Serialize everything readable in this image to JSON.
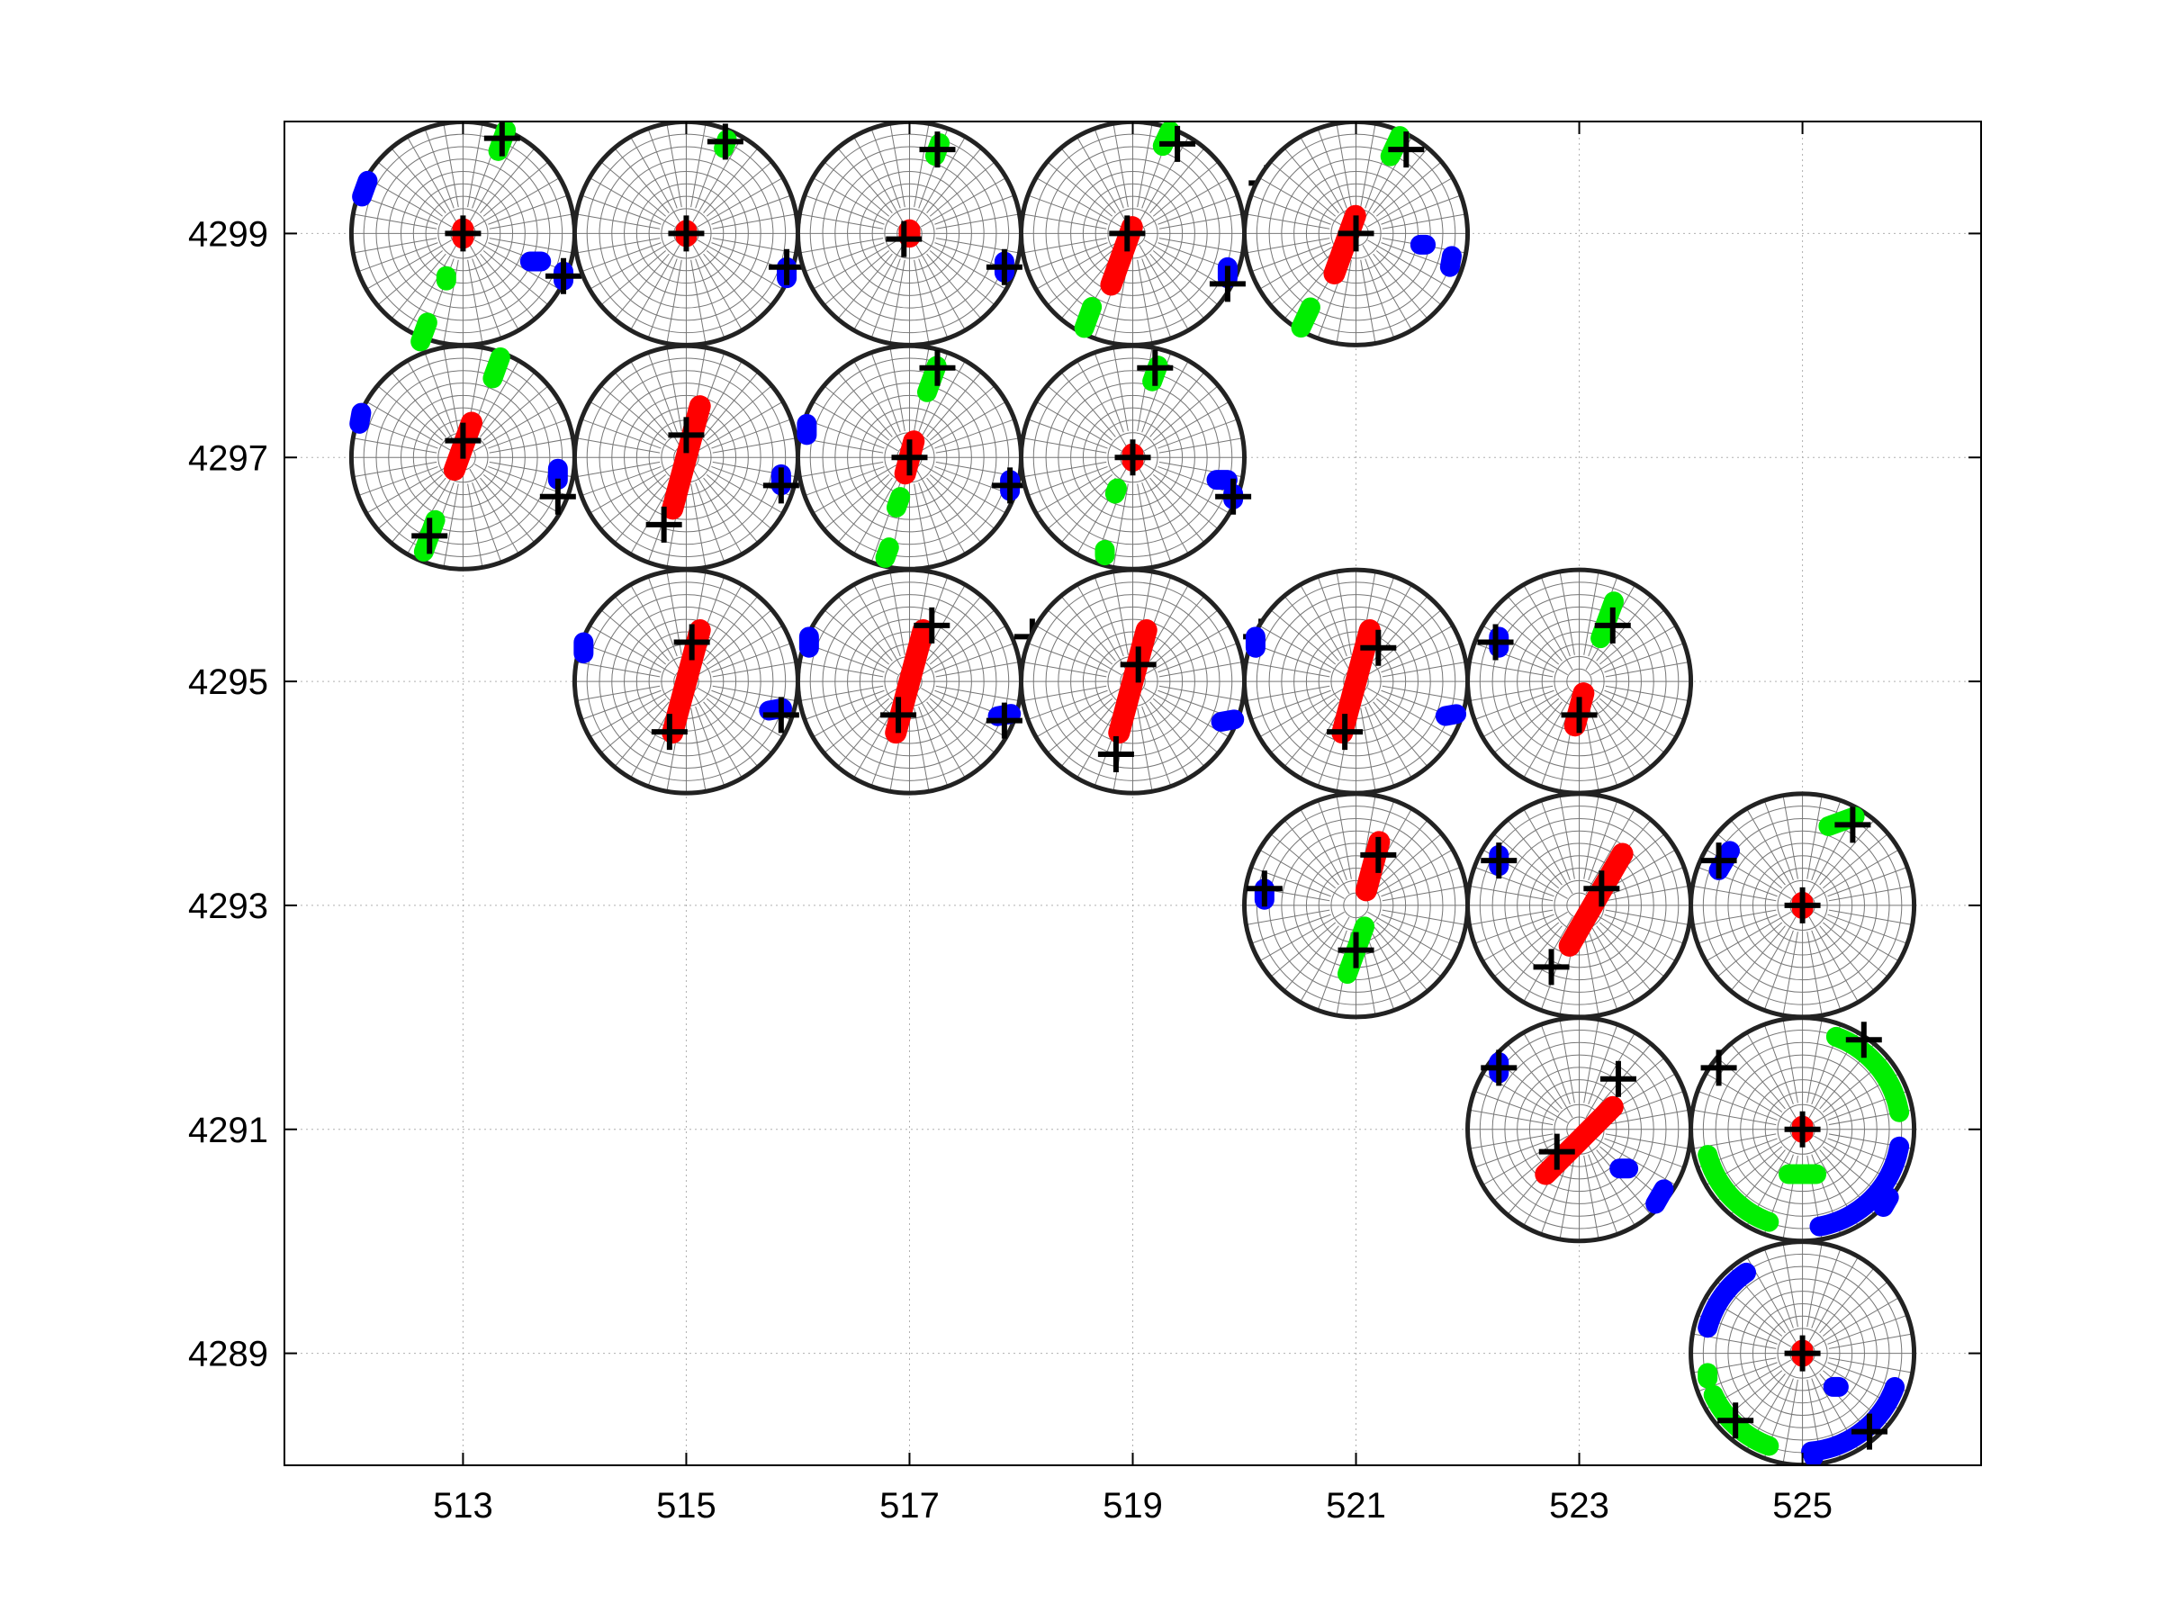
{
  "chart_data": {
    "type": "scatter",
    "title": "",
    "xlabel": "",
    "ylabel": "",
    "xlim": [
      511.4,
      526.6
    ],
    "ylim": [
      4288.0,
      4300.0
    ],
    "x_ticks": [
      "513",
      "515",
      "517",
      "519",
      "521",
      "523",
      "525"
    ],
    "y_ticks": [
      "4299",
      "4297",
      "4295",
      "4293",
      "4291",
      "4289"
    ],
    "grid": true,
    "glyph_radius": 1.0,
    "colors": {
      "red": "#ff0000",
      "green": "#00ee00",
      "blue": "#0000ff",
      "cross": "#000000",
      "net": "#777777",
      "circle": "#222222"
    },
    "series_note": "three point families per stereonet (red, green, blue) plus black cross markers",
    "stations": [
      {
        "x": 513,
        "y": 4299,
        "red": {
          "center": [
            0,
            0
          ],
          "az": 0,
          "len": 0.08
        },
        "green": [
          {
            "at": [
              0.35,
              0.83
            ],
            "az": 20,
            "len": 0.2
          },
          {
            "at": [
              -0.35,
              -0.88
            ],
            "az": 20,
            "len": 0.18
          },
          {
            "at": [
              -0.15,
              -0.4
            ],
            "az": 0,
            "len": 0.04
          }
        ],
        "blue": [
          {
            "at": [
              -0.88,
              0.4
            ],
            "az": 20,
            "len": 0.15
          },
          {
            "at": [
              0.65,
              -0.25
            ],
            "az": 90,
            "len": 0.1
          },
          {
            "at": [
              0.9,
              -0.38
            ],
            "az": 0,
            "len": 0.08
          }
        ],
        "crosses": [
          [
            0,
            0
          ],
          [
            0.35,
            0.85
          ],
          [
            0.9,
            -0.38
          ]
        ]
      },
      {
        "x": 515,
        "y": 4299,
        "red": {
          "center": [
            0,
            0
          ],
          "az": 0,
          "len": 0.05
        },
        "green": [
          {
            "at": [
              0.35,
              0.8
            ],
            "az": 20,
            "len": 0.08
          }
        ],
        "blue": [
          {
            "at": [
              0.9,
              -0.35
            ],
            "az": 0,
            "len": 0.1
          }
        ],
        "crosses": [
          [
            0,
            0
          ],
          [
            0.35,
            0.82
          ],
          [
            0.9,
            -0.3
          ]
        ]
      },
      {
        "x": 517,
        "y": 4299,
        "red": {
          "center": [
            0,
            0
          ],
          "az": 0,
          "len": 0.06
        },
        "green": [
          {
            "at": [
              0.25,
              0.75
            ],
            "az": 20,
            "len": 0.12
          }
        ],
        "blue": [
          {
            "at": [
              0.85,
              -0.3
            ],
            "az": 0,
            "len": 0.1
          }
        ],
        "crosses": [
          [
            -0.05,
            -0.05
          ],
          [
            0.25,
            0.75
          ],
          [
            0.85,
            -0.3
          ]
        ]
      },
      {
        "x": 519,
        "y": 4299,
        "red": {
          "center": [
            -0.1,
            -0.2
          ],
          "az": 20,
          "len": 0.55
        },
        "green": [
          {
            "at": [
              0.3,
              0.85
            ],
            "az": 25,
            "len": 0.15
          },
          {
            "at": [
              -0.4,
              -0.75
            ],
            "az": 20,
            "len": 0.2
          }
        ],
        "blue": [
          {
            "at": [
              0.85,
              -0.35
            ],
            "az": 0,
            "len": 0.1
          }
        ],
        "crosses": [
          [
            -0.05,
            0
          ],
          [
            0.4,
            0.8
          ],
          [
            0.85,
            -0.45
          ],
          [
            1.2,
            0.45
          ]
        ]
      },
      {
        "x": 521,
        "y": 4299,
        "red": {
          "center": [
            -0.1,
            -0.1
          ],
          "az": 20,
          "len": 0.55
        },
        "green": [
          {
            "at": [
              0.35,
              0.78
            ],
            "az": 25,
            "len": 0.2
          },
          {
            "at": [
              -0.45,
              -0.75
            ],
            "az": 25,
            "len": 0.2
          }
        ],
        "blue": [
          {
            "at": [
              0.85,
              -0.25
            ],
            "az": 10,
            "len": 0.1
          },
          {
            "at": [
              0.6,
              -0.1
            ],
            "az": 90,
            "len": 0.05
          }
        ],
        "crosses": [
          [
            0,
            0
          ],
          [
            0.45,
            0.75
          ]
        ]
      },
      {
        "x": 513,
        "y": 4297,
        "red": {
          "center": [
            0,
            0.1
          ],
          "az": 20,
          "len": 0.45
        },
        "green": [
          {
            "at": [
              0.3,
              0.8
            ],
            "az": 20,
            "len": 0.2
          },
          {
            "at": [
              -0.3,
              -0.7
            ],
            "az": 20,
            "len": 0.3
          }
        ],
        "blue": [
          {
            "at": [
              -0.92,
              0.35
            ],
            "az": 10,
            "len": 0.1
          },
          {
            "at": [
              0.85,
              -0.15
            ],
            "az": 0,
            "len": 0.1
          }
        ],
        "crosses": [
          [
            0,
            0.15
          ],
          [
            -0.3,
            -0.7
          ],
          [
            0.85,
            -0.35
          ]
        ]
      },
      {
        "x": 515,
        "y": 4297,
        "red": {
          "center": [
            0,
            0
          ],
          "az": 15,
          "len": 0.95
        },
        "green": [],
        "blue": [
          {
            "at": [
              0.85,
              -0.2
            ],
            "az": 0,
            "len": 0.1
          }
        ],
        "crosses": [
          [
            0,
            0.2
          ],
          [
            -0.2,
            -0.6
          ],
          [
            0.85,
            -0.25
          ]
        ]
      },
      {
        "x": 517,
        "y": 4297,
        "red": {
          "center": [
            0,
            0
          ],
          "az": 15,
          "len": 0.3
        },
        "green": [
          {
            "at": [
              0.2,
              0.7
            ],
            "az": 20,
            "len": 0.25
          },
          {
            "at": [
              -0.2,
              -0.85
            ],
            "az": 20,
            "len": 0.1
          },
          {
            "at": [
              -0.1,
              -0.4
            ],
            "az": 20,
            "len": 0.1
          }
        ],
        "blue": [
          {
            "at": [
              -0.92,
              0.25
            ],
            "az": 0,
            "len": 0.1
          },
          {
            "at": [
              0.9,
              -0.25
            ],
            "az": 0,
            "len": 0.1
          }
        ],
        "crosses": [
          [
            0,
            0
          ],
          [
            0.25,
            0.8
          ],
          [
            0.9,
            -0.25
          ]
        ]
      },
      {
        "x": 519,
        "y": 4297,
        "red": {
          "center": [
            0,
            0
          ],
          "az": 0,
          "len": 0.06
        },
        "green": [
          {
            "at": [
              0.2,
              0.75
            ],
            "az": 20,
            "len": 0.15
          },
          {
            "at": [
              -0.15,
              -0.3
            ],
            "az": 20,
            "len": 0.05
          },
          {
            "at": [
              -0.25,
              -0.85
            ],
            "az": 0,
            "len": 0.05
          }
        ],
        "blue": [
          {
            "at": [
              0.8,
              -0.2
            ],
            "az": 90,
            "len": 0.1
          },
          {
            "at": [
              0.9,
              -0.35
            ],
            "az": 0,
            "len": 0.05
          }
        ],
        "crosses": [
          [
            0,
            0
          ],
          [
            0.2,
            0.8
          ],
          [
            0.9,
            -0.35
          ]
        ]
      },
      {
        "x": 515,
        "y": 4295,
        "red": {
          "center": [
            0,
            0
          ],
          "az": 15,
          "len": 0.95
        },
        "green": [],
        "blue": [
          {
            "at": [
              -0.92,
              0.3
            ],
            "az": 0,
            "len": 0.1
          },
          {
            "at": [
              0.8,
              -0.25
            ],
            "az": 80,
            "len": 0.12
          }
        ],
        "crosses": [
          [
            0.05,
            0.35
          ],
          [
            -0.15,
            -0.45
          ],
          [
            0.85,
            -0.3
          ]
        ]
      },
      {
        "x": 517,
        "y": 4295,
        "red": {
          "center": [
            0,
            0
          ],
          "az": 15,
          "len": 0.95
        },
        "green": [],
        "blue": [
          {
            "at": [
              -0.9,
              0.35
            ],
            "az": 0,
            "len": 0.1
          },
          {
            "at": [
              0.85,
              -0.3
            ],
            "az": 80,
            "len": 0.12
          }
        ],
        "crosses": [
          [
            0.2,
            0.5
          ],
          [
            -0.1,
            -0.3
          ],
          [
            0.85,
            -0.35
          ],
          [
            1.1,
            0.4
          ]
        ]
      },
      {
        "x": 519,
        "y": 4295,
        "red": {
          "center": [
            0,
            0
          ],
          "az": 15,
          "len": 0.95
        },
        "green": [],
        "blue": [
          {
            "at": [
              0.85,
              -0.35
            ],
            "az": 80,
            "len": 0.12
          }
        ],
        "crosses": [
          [
            0.05,
            0.15
          ],
          [
            -0.15,
            -0.65
          ],
          [
            1.15,
            0.4
          ]
        ]
      },
      {
        "x": 521,
        "y": 4295,
        "red": {
          "center": [
            0,
            0
          ],
          "az": 15,
          "len": 0.95
        },
        "green": [],
        "blue": [
          {
            "at": [
              -0.9,
              0.35
            ],
            "az": 0,
            "len": 0.1
          },
          {
            "at": [
              0.85,
              -0.3
            ],
            "az": 80,
            "len": 0.1
          }
        ],
        "crosses": [
          [
            0.2,
            0.3
          ],
          [
            -0.1,
            -0.45
          ]
        ]
      },
      {
        "x": 523,
        "y": 4295,
        "red": {
          "center": [
            0,
            -0.25
          ],
          "az": 15,
          "len": 0.3
        },
        "green": [
          {
            "at": [
              0.25,
              0.55
            ],
            "az": 20,
            "len": 0.35
          }
        ],
        "blue": [
          {
            "at": [
              -0.72,
              0.35
            ],
            "az": 0,
            "len": 0.1
          }
        ],
        "crosses": [
          [
            0,
            -0.3
          ],
          [
            0.3,
            0.5
          ],
          [
            -0.75,
            0.35
          ]
        ]
      },
      {
        "x": 521,
        "y": 4293,
        "red": {
          "center": [
            0.15,
            0.35
          ],
          "az": 15,
          "len": 0.45
        },
        "green": [
          {
            "at": [
              0,
              -0.4
            ],
            "az": 20,
            "len": 0.45
          }
        ],
        "blue": [
          {
            "at": [
              -0.82,
              0.1
            ],
            "az": 0,
            "len": 0.1
          }
        ],
        "crosses": [
          [
            0.2,
            0.45
          ],
          [
            0,
            -0.4
          ],
          [
            -0.82,
            0.15
          ]
        ]
      },
      {
        "x": 523,
        "y": 4293,
        "red": {
          "center": [
            0.15,
            0.05
          ],
          "az": 30,
          "len": 0.95
        },
        "green": [],
        "blue": [
          {
            "at": [
              -0.72,
              0.4
            ],
            "az": 0,
            "len": 0.1
          }
        ],
        "crosses": [
          [
            0.2,
            0.15
          ],
          [
            -0.25,
            -0.55
          ],
          [
            -0.72,
            0.4
          ]
        ]
      },
      {
        "x": 525,
        "y": 4293,
        "red": {
          "center": [
            0,
            0
          ],
          "az": 0,
          "len": 0.05
        },
        "green": [
          {
            "at": [
              0.35,
              0.75
            ],
            "az": 70,
            "len": 0.25
          }
        ],
        "blue": [
          {
            "at": [
              -0.7,
              0.4
            ],
            "az": 30,
            "len": 0.2
          }
        ],
        "crosses": [
          [
            0,
            0
          ],
          [
            0.45,
            0.72
          ],
          [
            -0.75,
            0.4
          ]
        ]
      },
      {
        "x": 523,
        "y": 4291,
        "red": {
          "center": [
            0,
            -0.1
          ],
          "az": 45,
          "len": 0.85
        },
        "green": [],
        "blue": [
          {
            "at": [
              -0.72,
              0.55
            ],
            "az": 0,
            "len": 0.1
          },
          {
            "at": [
              0.4,
              -0.35
            ],
            "az": 90,
            "len": 0.08
          },
          {
            "at": [
              0.72,
              -0.6
            ],
            "az": 30,
            "len": 0.15
          }
        ],
        "crosses": [
          [
            0.35,
            0.45
          ],
          [
            -0.2,
            -0.2
          ],
          [
            -0.72,
            0.55
          ]
        ]
      },
      {
        "x": 525,
        "y": 4291,
        "red": {
          "center": [
            0,
            0
          ],
          "az": 0,
          "len": 0.05
        },
        "green": [
          {
            "at": [
              0,
              -0.4
            ],
            "az": 90,
            "len": 0.25
          }
        ],
        "green_arcs": [
          {
            "from": 20,
            "to": 80
          },
          {
            "from": 200,
            "to": 255
          }
        ],
        "blue_arcs": [
          {
            "from": 100,
            "to": 170
          }
        ],
        "blue": [
          {
            "at": [
              0.75,
              -0.65
            ],
            "az": 30,
            "len": 0.1
          }
        ],
        "crosses": [
          [
            0,
            0
          ],
          [
            0.55,
            0.8
          ],
          [
            -0.75,
            0.55
          ]
        ]
      },
      {
        "x": 525,
        "y": 4289,
        "red": {
          "center": [
            0,
            0
          ],
          "az": 0,
          "len": 0.05
        },
        "green_arcs": [
          {
            "from": 200,
            "to": 245
          }
        ],
        "blue_arcs": [
          {
            "from": 110,
            "to": 175
          },
          {
            "from": 285,
            "to": 325
          }
        ],
        "green": [
          {
            "at": [
              -0.85,
              -0.2
            ],
            "az": 0,
            "len": 0.05
          }
        ],
        "blue": [
          {
            "at": [
              0.3,
              -0.3
            ],
            "az": 90,
            "len": 0.05
          },
          {
            "at": [
              0.1,
              -0.9
            ],
            "az": 0,
            "len": 0.05
          }
        ],
        "crosses": [
          [
            0,
            0
          ],
          [
            -0.6,
            -0.6
          ],
          [
            0.6,
            -0.7
          ]
        ]
      }
    ]
  }
}
